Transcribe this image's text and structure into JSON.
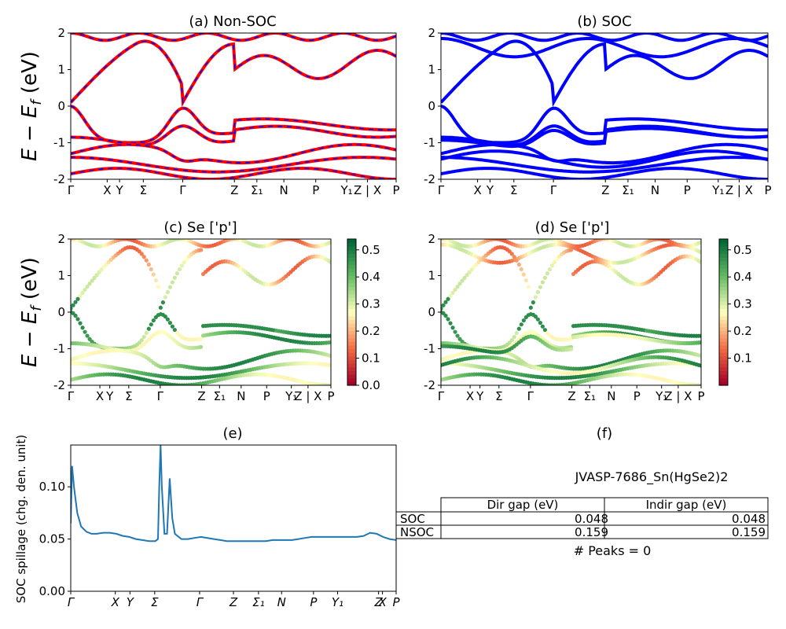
{
  "figure": {
    "ylabel_energy": "E − E_f (eV)",
    "ylabel_spillage": "SOC spillage (chg. den. unit)"
  },
  "kpath_labels": [
    "Γ",
    "X",
    "Y",
    "Σ",
    "Γ",
    "Z",
    "Σ₁",
    "N",
    "P",
    "Y₁",
    "Z | X",
    "P"
  ],
  "kpath_labels_e": [
    "Γ",
    "X",
    "Y",
    "Σ",
    "Γ",
    "Z",
    "Σ₁",
    "N",
    "P",
    "Y₁",
    "Z",
    "X",
    "P"
  ],
  "panel_titles": {
    "a": "(a) Non-SOC",
    "b": "(b) SOC",
    "c": "(c)  Se ['p']",
    "d": "(d) Se ['p']",
    "e": "(e)",
    "f": "(f)"
  },
  "colorbar_c": {
    "ticks": [
      "0.0",
      "0.1",
      "0.2",
      "0.3",
      "0.4",
      "0.5"
    ],
    "min": 0.0,
    "max": 0.54
  },
  "colorbar_d": {
    "ticks": [
      "0.1",
      "0.2",
      "0.3",
      "0.4",
      "0.5"
    ],
    "min": 0.0,
    "max": 0.54
  },
  "table": {
    "title": "JVASP-7686_Sn(HgSe2)2",
    "header": [
      "Dir gap (eV)",
      "Indir gap (eV)"
    ],
    "rows": [
      {
        "label": "SOC",
        "dir": "0.048",
        "indir": "0.048"
      },
      {
        "label": "NSOC",
        "dir": "0.159",
        "indir": "0.159"
      }
    ],
    "peaks": "# Peaks = 0"
  },
  "chart_data": [
    {
      "type": "line",
      "title": "(a) Non-SOC",
      "ylabel": "E − E_f (eV)",
      "ylim": [
        -2,
        2
      ],
      "yticks": [
        -2,
        -1,
        0,
        1,
        2
      ],
      "series_colors": [
        "#ff0000",
        "#0000ff"
      ],
      "note": "band structure, non-spin-orbit; red and blue bands overlap",
      "x_ticks": [
        "Γ",
        "X",
        "Y",
        "Σ",
        "Γ",
        "Z",
        "Σ₁",
        "N",
        "P",
        "Y₁",
        "Z | X",
        "P"
      ]
    },
    {
      "type": "line",
      "title": "(b) SOC",
      "ylabel": "",
      "ylim": [
        -2,
        2
      ],
      "yticks": [
        -2,
        -1,
        0,
        1,
        2
      ],
      "series_colors": [
        "#0000ff"
      ],
      "x_ticks": [
        "Γ",
        "X",
        "Y",
        "Σ",
        "Γ",
        "Z",
        "Σ₁",
        "N",
        "P",
        "Y₁",
        "Z | X",
        "P"
      ]
    },
    {
      "type": "scatter",
      "title": "(c)  Se ['p']",
      "ylabel": "E − E_f (eV)",
      "ylim": [
        -2,
        2
      ],
      "yticks": [
        -2,
        -1,
        0,
        1,
        2
      ],
      "colormap": "RdYlGn",
      "clim": [
        0.0,
        0.54
      ],
      "x_ticks": [
        "Γ",
        "X",
        "Y",
        "Σ",
        "Γ",
        "Z",
        "Σ₁",
        "N",
        "P",
        "Y₁",
        "Z | X",
        "P"
      ]
    },
    {
      "type": "scatter",
      "title": "(d) Se ['p']",
      "ylabel": "",
      "ylim": [
        -2,
        2
      ],
      "yticks": [
        -2,
        -1,
        0,
        1,
        2
      ],
      "colormap": "RdYlGn",
      "clim": [
        0.0,
        0.54
      ],
      "x_ticks": [
        "Γ",
        "X",
        "Y",
        "Σ",
        "Γ",
        "Z",
        "Σ₁",
        "N",
        "P",
        "Y₁",
        "Z | X",
        "P"
      ]
    },
    {
      "type": "line",
      "title": "(e)",
      "ylabel": "SOC spillage (chg. den. unit)",
      "ylim": [
        0.0,
        0.14
      ],
      "yticks": [
        "0.00",
        "0.05",
        "0.10"
      ],
      "color": "#1f77b4",
      "x_ticks": [
        "Γ",
        "X",
        "Y",
        "Σ",
        "Γ",
        "Z",
        "Σ₁",
        "N",
        "P",
        "Y₁",
        "Z",
        "X",
        "P"
      ],
      "x": [
        0,
        0.01,
        0.025,
        0.05,
        0.08,
        0.12,
        0.16,
        0.2,
        0.25,
        0.3,
        0.35,
        0.4,
        0.45,
        0.5,
        0.55,
        0.6,
        0.63,
        0.65,
        0.67,
        0.68,
        0.69,
        0.7,
        0.72,
        0.74,
        0.76,
        0.78,
        0.8,
        0.85,
        0.9,
        0.95,
        1.0,
        1.05,
        1.1,
        1.15,
        1.2,
        1.25,
        1.3,
        1.35,
        1.4,
        1.45,
        1.5,
        1.55,
        1.6,
        1.65,
        1.7,
        1.75,
        1.8,
        1.85,
        1.9,
        1.95,
        2.0,
        2.05,
        2.1,
        2.15,
        2.2,
        2.25,
        2.3,
        2.35,
        2.4,
        2.45,
        2.5
      ],
      "y": [
        0.065,
        0.12,
        0.1,
        0.075,
        0.062,
        0.057,
        0.055,
        0.055,
        0.056,
        0.056,
        0.055,
        0.053,
        0.052,
        0.05,
        0.049,
        0.048,
        0.048,
        0.048,
        0.05,
        0.1,
        0.14,
        0.1,
        0.055,
        0.055,
        0.108,
        0.07,
        0.055,
        0.05,
        0.05,
        0.051,
        0.052,
        0.051,
        0.05,
        0.049,
        0.048,
        0.048,
        0.048,
        0.048,
        0.048,
        0.048,
        0.048,
        0.049,
        0.049,
        0.049,
        0.049,
        0.05,
        0.051,
        0.052,
        0.052,
        0.052,
        0.052,
        0.052,
        0.052,
        0.052,
        0.052,
        0.053,
        0.056,
        0.055,
        0.052,
        0.05,
        0.049
      ]
    }
  ]
}
